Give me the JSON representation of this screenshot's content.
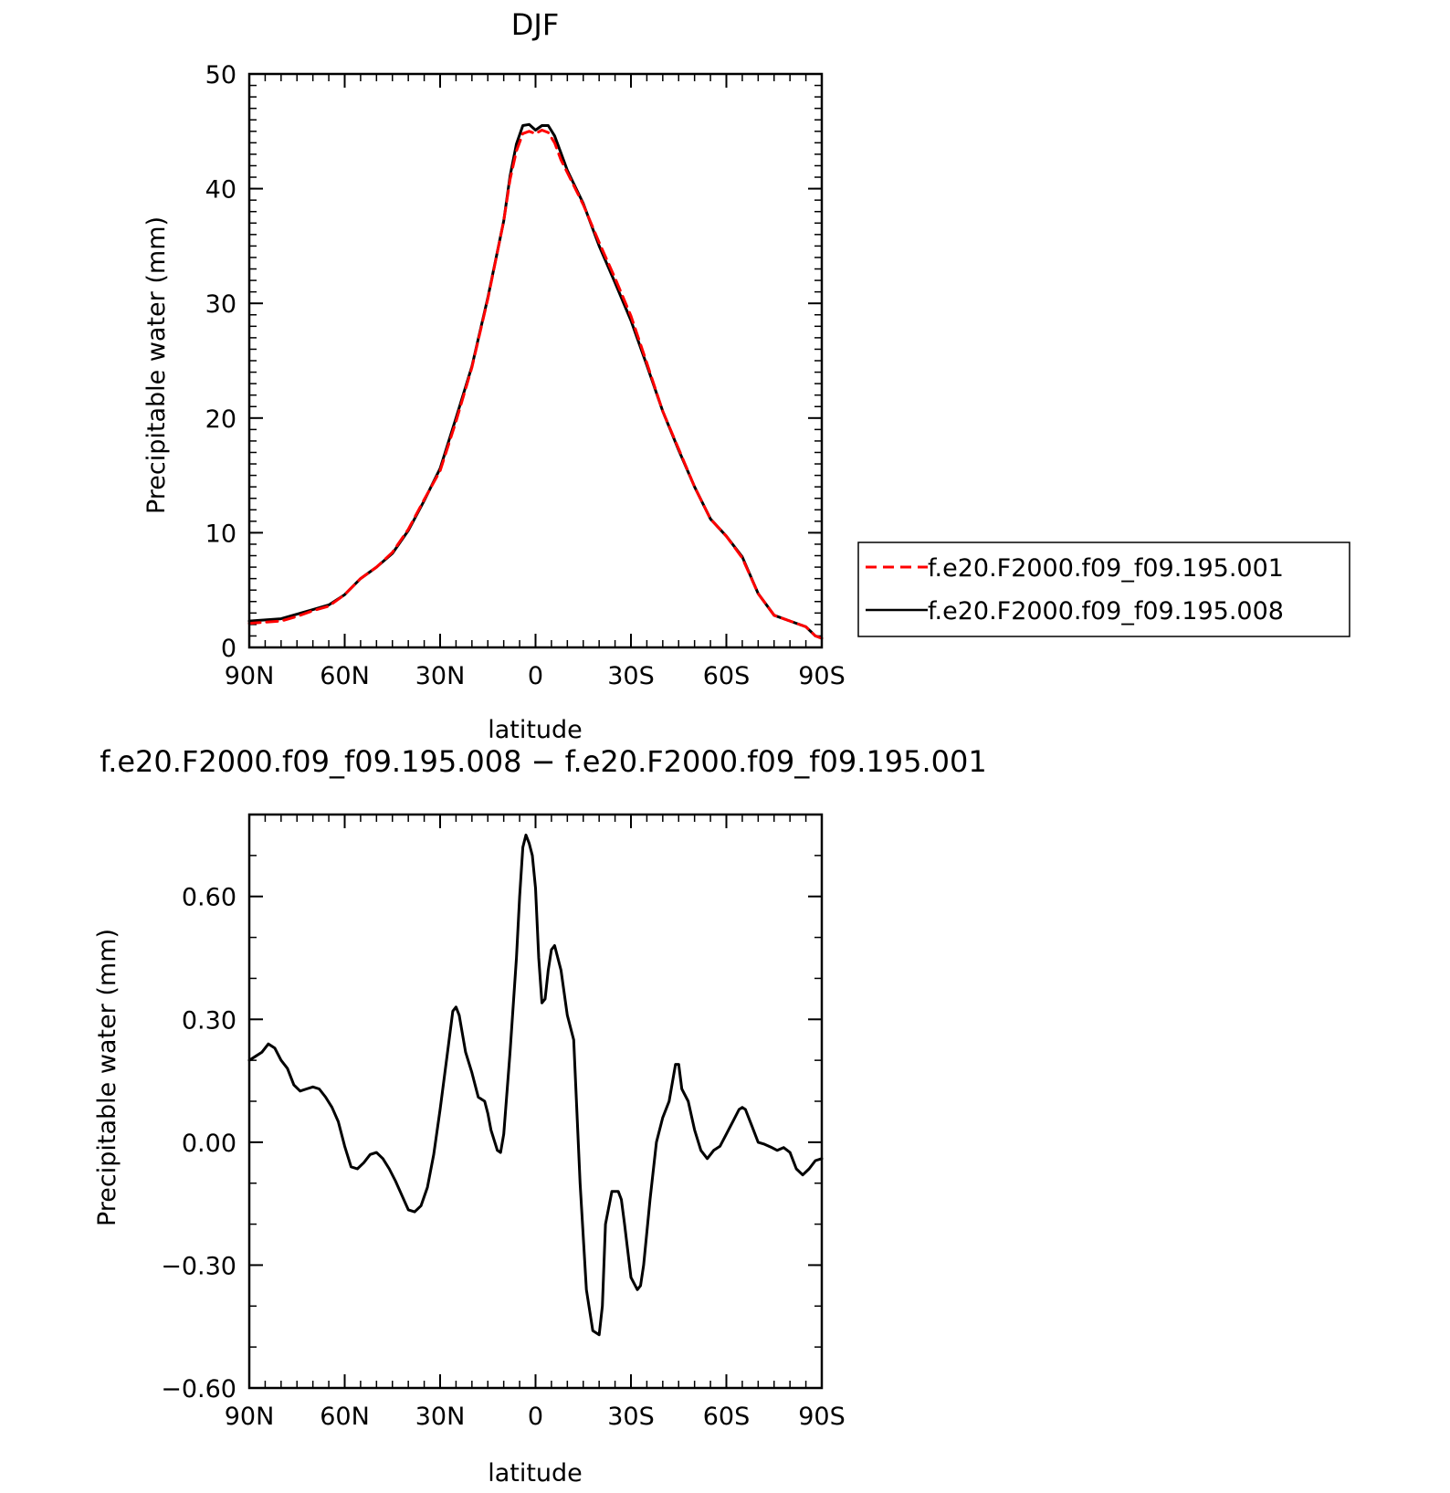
{
  "colors": {
    "run001": "#ff0000",
    "run008": "#000000",
    "axes": "#000000"
  },
  "chart_data": [
    {
      "type": "line",
      "title": "DJF",
      "xlabel": "latitude",
      "ylabel": "Precipitable water (mm)",
      "xlim": [
        90,
        -90
      ],
      "ylim": [
        0,
        50
      ],
      "xticks": [
        90,
        60,
        30,
        0,
        -30,
        -60,
        -90
      ],
      "xticklabels": [
        "90N",
        "60N",
        "30N",
        "0",
        "30S",
        "60S",
        "90S"
      ],
      "yticks": [
        0,
        10,
        20,
        30,
        40,
        50
      ],
      "yticklabels": [
        "0",
        "10",
        "20",
        "30",
        "40",
        "50"
      ],
      "legend_position": "right",
      "x": [
        90,
        85,
        80,
        75,
        70,
        65,
        60,
        55,
        50,
        45,
        40,
        35,
        30,
        25,
        20,
        15,
        10,
        8,
        6,
        4,
        2,
        0,
        -2,
        -4,
        -6,
        -8,
        -10,
        -15,
        -20,
        -25,
        -30,
        -35,
        -40,
        -45,
        -50,
        -55,
        -60,
        -65,
        -70,
        -75,
        -80,
        -85,
        -88,
        -90
      ],
      "series": [
        {
          "name": "f.e20.F2000.f09_f09.195.001",
          "style": "dashed",
          "color": "#ff0000",
          "values": [
            2.1,
            2.2,
            2.3,
            2.7,
            3.2,
            3.6,
            4.6,
            6.0,
            7.0,
            8.3,
            10.3,
            12.9,
            15.4,
            19.7,
            24.4,
            30.4,
            37.2,
            40.8,
            43.3,
            44.8,
            45.0,
            44.8,
            45.1,
            44.9,
            44.0,
            42.5,
            41.4,
            38.6,
            35.3,
            32.2,
            28.9,
            24.8,
            20.6,
            17.3,
            14.0,
            11.2,
            9.7,
            7.8,
            4.7,
            2.8,
            2.3,
            1.8,
            1.0,
            0.8
          ]
        },
        {
          "name": "f.e20.F2000.f09_f09.195.008",
          "style": "solid",
          "color": "#000000",
          "values": [
            2.3,
            2.4,
            2.5,
            2.9,
            3.3,
            3.7,
            4.6,
            6.0,
            7.0,
            8.2,
            10.2,
            12.8,
            15.6,
            20.0,
            24.5,
            30.5,
            37.2,
            41.1,
            43.9,
            45.5,
            45.6,
            45.1,
            45.5,
            45.5,
            44.6,
            43.1,
            41.6,
            38.7,
            35.0,
            31.8,
            28.5,
            24.6,
            20.6,
            17.2,
            14.0,
            11.2,
            9.7,
            7.9,
            4.7,
            2.8,
            2.3,
            1.8,
            1.0,
            0.8
          ]
        }
      ]
    },
    {
      "type": "line",
      "title": "f.e20.F2000.f09_f09.195.008 − f.e20.F2000.f09_f09.195.001",
      "xlabel": "latitude",
      "ylabel": "Precipitable water (mm)",
      "xlim": [
        90,
        -90
      ],
      "ylim": [
        -0.6,
        0.8
      ],
      "xticks": [
        90,
        60,
        30,
        0,
        -30,
        -60,
        -90
      ],
      "xticklabels": [
        "90N",
        "60N",
        "30N",
        "0",
        "30S",
        "60S",
        "90S"
      ],
      "yticks": [
        -0.6,
        -0.3,
        0.0,
        0.3,
        0.6
      ],
      "yticklabels": [
        "−0.60",
        "−0.30",
        "0.00",
        "0.30",
        "0.60"
      ],
      "x": [
        90,
        88,
        86,
        84,
        82,
        80,
        78,
        76,
        74,
        72,
        70,
        68,
        66,
        64,
        62,
        60,
        58,
        56,
        54,
        52,
        50,
        48,
        46,
        44,
        42,
        40,
        38,
        36,
        34,
        32,
        30,
        28,
        26,
        25,
        24,
        22,
        20,
        18,
        16,
        15,
        14,
        12,
        11,
        10,
        8,
        6,
        5,
        4,
        3,
        2,
        1,
        0,
        -1,
        -2,
        -3,
        -4,
        -5,
        -6,
        -8,
        -10,
        -12,
        -14,
        -16,
        -18,
        -20,
        -21,
        -22,
        -24,
        -26,
        -27,
        -28,
        -30,
        -32,
        -33,
        -34,
        -36,
        -38,
        -40,
        -42,
        -44,
        -45,
        -46,
        -48,
        -50,
        -52,
        -54,
        -55,
        -56,
        -58,
        -60,
        -62,
        -64,
        -65,
        -66,
        -68,
        -70,
        -72,
        -74,
        -76,
        -78,
        -80,
        -82,
        -84,
        -86,
        -88,
        -90
      ],
      "series": [
        {
          "name": "",
          "style": "solid",
          "color": "#000000",
          "values": [
            0.2,
            0.21,
            0.22,
            0.24,
            0.23,
            0.2,
            0.18,
            0.14,
            0.125,
            0.13,
            0.135,
            0.13,
            0.11,
            0.085,
            0.05,
            -0.01,
            -0.06,
            -0.065,
            -0.05,
            -0.03,
            -0.025,
            -0.04,
            -0.065,
            -0.095,
            -0.13,
            -0.165,
            -0.17,
            -0.155,
            -0.11,
            -0.03,
            0.08,
            0.2,
            0.32,
            0.33,
            0.31,
            0.22,
            0.17,
            0.11,
            0.1,
            0.07,
            0.03,
            -0.02,
            -0.025,
            0.02,
            0.22,
            0.45,
            0.6,
            0.72,
            0.75,
            0.73,
            0.7,
            0.62,
            0.45,
            0.34,
            0.35,
            0.42,
            0.47,
            0.48,
            0.42,
            0.31,
            0.25,
            -0.1,
            -0.36,
            -0.46,
            -0.47,
            -0.4,
            -0.2,
            -0.12,
            -0.12,
            -0.14,
            -0.2,
            -0.33,
            -0.36,
            -0.35,
            -0.3,
            -0.14,
            0.0,
            0.06,
            0.1,
            0.19,
            0.19,
            0.13,
            0.1,
            0.03,
            -0.02,
            -0.04,
            -0.03,
            -0.02,
            -0.01,
            0.02,
            0.05,
            0.08,
            0.085,
            0.08,
            0.04,
            0.0,
            -0.005,
            -0.012,
            -0.02,
            -0.013,
            -0.025,
            -0.065,
            -0.08,
            -0.065,
            -0.045,
            -0.04
          ]
        }
      ]
    }
  ]
}
